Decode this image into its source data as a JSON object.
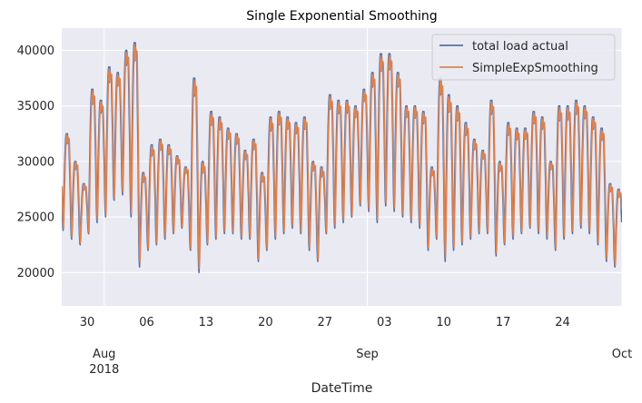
{
  "chart_data": {
    "type": "line",
    "title": "Single Exponential Smoothing",
    "xlabel": "DateTime",
    "ylabel": "",
    "ylim": [
      17000,
      42000
    ],
    "xlim": [
      "2018-07-27",
      "2018-10-01"
    ],
    "yticks": [
      20000,
      25000,
      30000,
      35000,
      40000
    ],
    "xticks_minor": [
      {
        "date": "2018-07-30",
        "label": "30"
      },
      {
        "date": "2018-08-06",
        "label": "06"
      },
      {
        "date": "2018-08-13",
        "label": "13"
      },
      {
        "date": "2018-08-20",
        "label": "20"
      },
      {
        "date": "2018-08-27",
        "label": "27"
      },
      {
        "date": "2018-09-03",
        "label": "03"
      },
      {
        "date": "2018-09-10",
        "label": "10"
      },
      {
        "date": "2018-09-17",
        "label": "17"
      },
      {
        "date": "2018-09-24",
        "label": "24"
      }
    ],
    "xticks_major": [
      {
        "date": "2018-08-01",
        "label": "Aug",
        "sublabel": "2018"
      },
      {
        "date": "2018-09-01",
        "label": "Sep",
        "sublabel": ""
      },
      {
        "date": "2018-10-01",
        "label": "Oct",
        "sublabel": ""
      }
    ],
    "grid": true,
    "legend_position": "top-right",
    "colors": {
      "background": "#eaeaf2",
      "grid": "#ffffff",
      "actual": "#4c72b0",
      "smooth": "#dd8452"
    },
    "daily_peak": {
      "dates": [
        "2018-07-27",
        "2018-07-28",
        "2018-07-29",
        "2018-07-30",
        "2018-07-31",
        "2018-08-01",
        "2018-08-02",
        "2018-08-03",
        "2018-08-04",
        "2018-08-05",
        "2018-08-06",
        "2018-08-07",
        "2018-08-08",
        "2018-08-09",
        "2018-08-10",
        "2018-08-11",
        "2018-08-12",
        "2018-08-13",
        "2018-08-14",
        "2018-08-15",
        "2018-08-16",
        "2018-08-17",
        "2018-08-18",
        "2018-08-19",
        "2018-08-20",
        "2018-08-21",
        "2018-08-22",
        "2018-08-23",
        "2018-08-24",
        "2018-08-25",
        "2018-08-26",
        "2018-08-27",
        "2018-08-28",
        "2018-08-29",
        "2018-08-30",
        "2018-08-31",
        "2018-09-01",
        "2018-09-02",
        "2018-09-03",
        "2018-09-04",
        "2018-09-05",
        "2018-09-06",
        "2018-09-07",
        "2018-09-08",
        "2018-09-09",
        "2018-09-10",
        "2018-09-11",
        "2018-09-12",
        "2018-09-13",
        "2018-09-14",
        "2018-09-15",
        "2018-09-16",
        "2018-09-17",
        "2018-09-18",
        "2018-09-19",
        "2018-09-20",
        "2018-09-21",
        "2018-09-22",
        "2018-09-23",
        "2018-09-24",
        "2018-09-25",
        "2018-09-26",
        "2018-09-27",
        "2018-09-28",
        "2018-09-29",
        "2018-09-30"
      ],
      "values": [
        32500,
        30000,
        28000,
        36500,
        35500,
        38500,
        38000,
        40000,
        40700,
        29000,
        31500,
        32000,
        31500,
        30500,
        29500,
        37500,
        30000,
        34500,
        34000,
        33000,
        32500,
        31000,
        32000,
        29000,
        34000,
        34500,
        34000,
        33500,
        34000,
        30000,
        29500,
        36000,
        35500,
        35500,
        35000,
        36500,
        38000,
        39700,
        39700,
        38000,
        35000,
        35000,
        34500,
        29500,
        37500,
        36000,
        35000,
        33500,
        32000,
        31000,
        35500,
        30000,
        33500,
        33000,
        33000,
        34500,
        34000,
        30000,
        35000,
        35000,
        35500,
        35000,
        34000,
        33000,
        28000,
        27500
      ]
    },
    "daily_trough": {
      "values": [
        23800,
        23000,
        22500,
        23500,
        24500,
        25000,
        26500,
        27000,
        25000,
        20500,
        22000,
        22500,
        23000,
        23500,
        24000,
        22000,
        20000,
        22500,
        23000,
        23500,
        23500,
        23000,
        23000,
        21000,
        22000,
        23000,
        23500,
        24000,
        23500,
        22000,
        21000,
        23500,
        24000,
        24500,
        25000,
        26000,
        25500,
        24500,
        26000,
        25500,
        25000,
        24500,
        24000,
        22000,
        23000,
        21000,
        22000,
        22500,
        23000,
        23500,
        23500,
        21500,
        22500,
        23000,
        23500,
        24000,
        23500,
        23000,
        22000,
        23000,
        23500,
        24000,
        23500,
        22500,
        21000,
        20500
      ]
    },
    "series": [
      {
        "name": "total load actual",
        "sampling": "hourly, 2018-07-27 to 2018-09-30",
        "shape": "daily cycle between daily_trough (04:00) and daily_peak (~13:00-20:00)"
      },
      {
        "name": "SimpleExpSmoothing",
        "smoothing_level": 0.7,
        "shape": "exponentially smoothed total load actual"
      }
    ]
  }
}
